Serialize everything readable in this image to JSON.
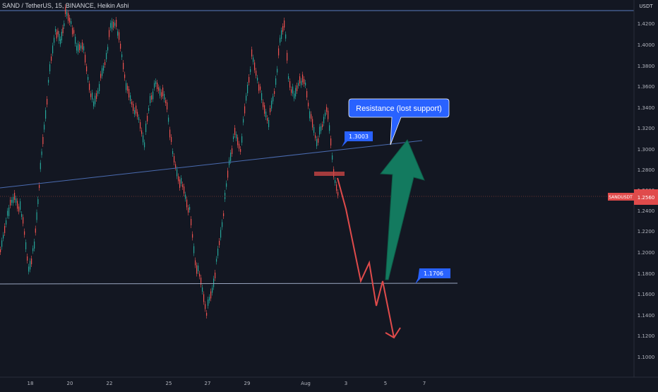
{
  "header": {
    "title": "SAND / TetherUS, 15, BINANCE, Heikin Ashi"
  },
  "price_axis": {
    "currency": "USDT",
    "ticks": [
      "1.4200",
      "1.4000",
      "1.3800",
      "1.3600",
      "1.3400",
      "1.3200",
      "1.3000",
      "1.2800",
      "1.2600",
      "1.2400",
      "1.2200",
      "1.2000",
      "1.1800",
      "1.1600",
      "1.1400",
      "1.1200",
      "1.1000"
    ],
    "current_price": "1.2560",
    "symbol_tag": "SANDUSDT"
  },
  "time_axis": {
    "ticks": [
      "18",
      "20",
      "22",
      "25",
      "27",
      "29",
      "Aug",
      "3",
      "5",
      "7"
    ]
  },
  "annotations": {
    "callout_text": "Resistance (lost support)",
    "resistance_label": "1.3003",
    "support_label": "1.1706"
  },
  "colors": {
    "background": "#131722",
    "up_candle": "#26a69a",
    "down_candle": "#ef5350",
    "trendline": "#4a6bb0",
    "callout": "#2962ff",
    "green_arrow": "#137a5f",
    "red_path": "#e04b4b"
  }
}
